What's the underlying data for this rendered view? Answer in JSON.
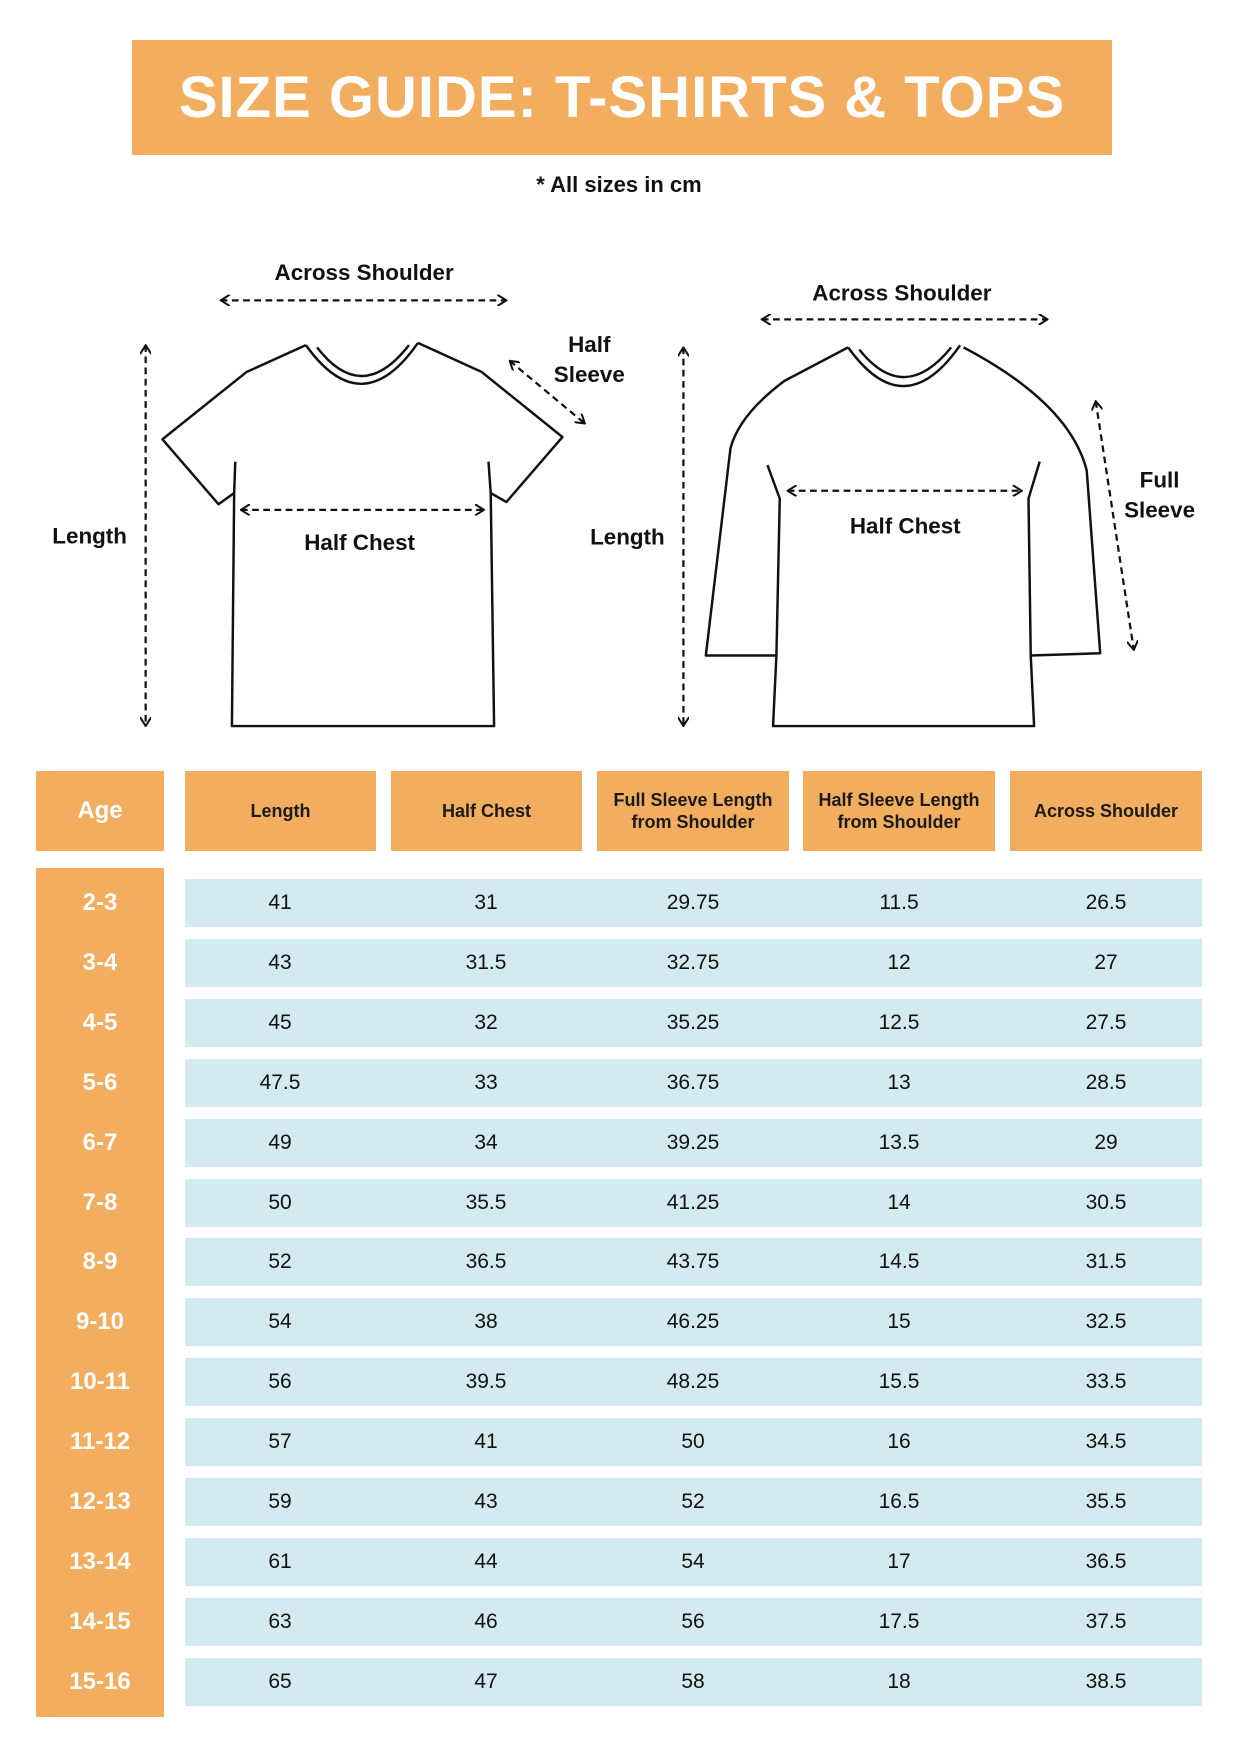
{
  "title": "SIZE GUIDE: T-SHIRTS & TOPS",
  "note": "* All sizes in cm",
  "colors": {
    "accent": "#F2AD5E",
    "row_bg": "#D3EBF0"
  },
  "diagrams": {
    "tshirt": {
      "across_shoulder": "Across Shoulder",
      "half_sleeve_1": "Half",
      "half_sleeve_2": "Sleeve",
      "length": "Length",
      "half_chest": "Half Chest"
    },
    "longsleeve": {
      "across_shoulder": "Across Shoulder",
      "full_sleeve_1": "Full",
      "full_sleeve_2": "Sleeve",
      "length": "Length",
      "half_chest": "Half Chest"
    }
  },
  "table": {
    "headers": [
      "Age",
      "Length",
      "Half Chest",
      "Full Sleeve Length from Shoulder",
      "Half Sleeve Length from Shoulder",
      "Across Shoulder"
    ],
    "rows": [
      [
        "2-3",
        "41",
        "31",
        "29.75",
        "11.5",
        "26.5"
      ],
      [
        "3-4",
        "43",
        "31.5",
        "32.75",
        "12",
        "27"
      ],
      [
        "4-5",
        "45",
        "32",
        "35.25",
        "12.5",
        "27.5"
      ],
      [
        "5-6",
        "47.5",
        "33",
        "36.75",
        "13",
        "28.5"
      ],
      [
        "6-7",
        "49",
        "34",
        "39.25",
        "13.5",
        "29"
      ],
      [
        "7-8",
        "50",
        "35.5",
        "41.25",
        "14",
        "30.5"
      ],
      [
        "8-9",
        "52",
        "36.5",
        "43.75",
        "14.5",
        "31.5"
      ],
      [
        "9-10",
        "54",
        "38",
        "46.25",
        "15",
        "32.5"
      ],
      [
        "10-11",
        "56",
        "39.5",
        "48.25",
        "15.5",
        "33.5"
      ],
      [
        "11-12",
        "57",
        "41",
        "50",
        "16",
        "34.5"
      ],
      [
        "12-13",
        "59",
        "43",
        "52",
        "16.5",
        "35.5"
      ],
      [
        "13-14",
        "61",
        "44",
        "54",
        "17",
        "36.5"
      ],
      [
        "14-15",
        "63",
        "46",
        "56",
        "17.5",
        "37.5"
      ],
      [
        "15-16",
        "65",
        "47",
        "58",
        "18",
        "38.5"
      ]
    ]
  }
}
